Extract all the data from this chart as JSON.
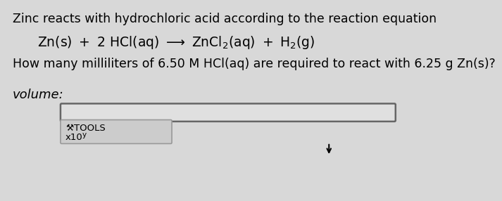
{
  "background_color": "#d8d8d8",
  "line1": "Zinc reacts with hydrochloric acid according to the reaction equation",
  "question": "How many milliliters of 6.50 M HCl(aq) are required to react with 6.25 g Zn(s)?",
  "volume_label": "volume:",
  "tools_text": "TOOLS",
  "tools_y_sub": "y",
  "x10_label": "x10",
  "font_size_main": 12.5,
  "font_size_eq": 13.5,
  "font_size_label": 12
}
